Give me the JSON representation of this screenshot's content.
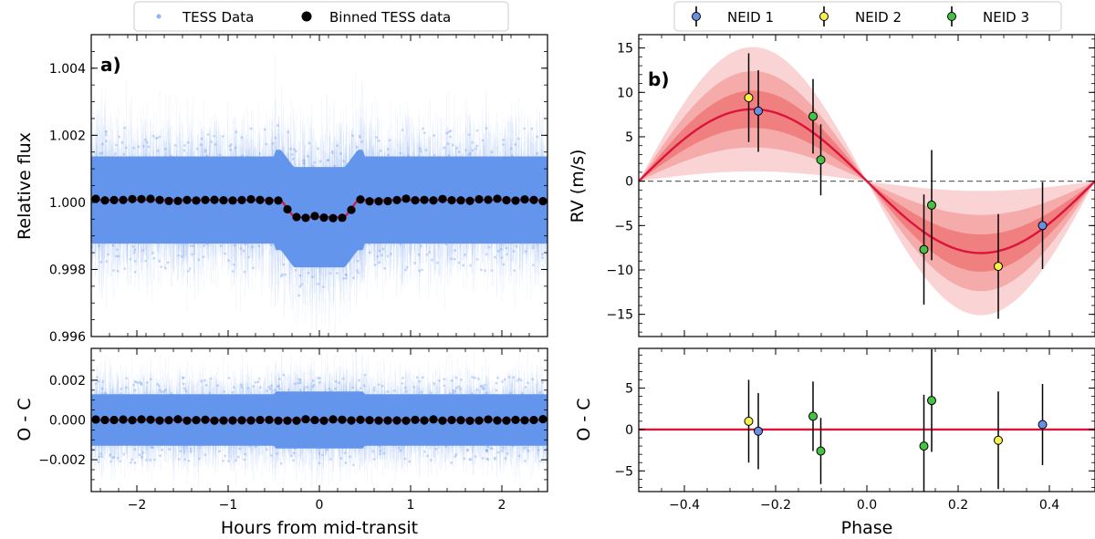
{
  "chart_data": [
    {
      "id": "transit",
      "type": "scatter",
      "panel_label": "a)",
      "legend": [
        "TESS Data",
        "Binned TESS data"
      ],
      "xlabel": "Hours from mid-transit",
      "ylabel": "Relative flux",
      "xlim": [
        -2.5,
        2.5
      ],
      "ylim": [
        0.996,
        1.005
      ],
      "xticks": [
        -2,
        -1,
        0,
        1,
        2
      ],
      "xtick_labels": [
        "−2",
        "−1",
        "0",
        "1",
        "2"
      ],
      "yticks": [
        0.996,
        0.998,
        1.0,
        1.002,
        1.004
      ],
      "ytick_labels": [
        "0.996",
        "0.998",
        "1.000",
        "1.002",
        "1.004"
      ],
      "raw_scatter": {
        "baseline": 1.00007,
        "core_halfwidth": 0.0013,
        "halo_halfwidth": 0.0019,
        "count": 4200
      },
      "model": {
        "baseline": 1.00007,
        "depth": 0.00051,
        "t1": 0.42,
        "t2": 0.28
      },
      "binned": {
        "x_start": -2.45,
        "step": 0.1,
        "count": 50
      },
      "colors": {
        "raw": "#6495ED",
        "binned": "#000000",
        "model": "#DC143C"
      }
    },
    {
      "id": "transit_residuals",
      "type": "scatter",
      "ylabel": "O - C",
      "xlim": [
        -2.5,
        2.5
      ],
      "ylim": [
        -0.0036,
        0.0036
      ],
      "yticks": [
        -0.002,
        0.0,
        0.002
      ],
      "ytick_labels": [
        "−0.002",
        "0.000",
        "0.002"
      ],
      "raw_scatter": {
        "baseline": 0.0,
        "core_halfwidth": 0.0013,
        "halo_halfwidth": 0.0019,
        "count": 4200
      },
      "binned": {
        "x_start": -2.45,
        "step": 0.1,
        "count": 50
      }
    },
    {
      "id": "rv",
      "type": "scatter",
      "panel_label": "b)",
      "legend": [
        "NEID 1",
        "NEID 2",
        "NEID 3"
      ],
      "ylabel": "RV (m/s)",
      "xlim": [
        -0.5,
        0.5
      ],
      "ylim": [
        -17.5,
        16.5
      ],
      "yticks": [
        -15,
        -10,
        -5,
        0,
        5,
        10,
        15
      ],
      "ytick_labels": [
        "−15",
        "−10",
        "−5",
        "0",
        "5",
        "10",
        "15"
      ],
      "model": {
        "K": 8.1,
        "bands_amplitude": [
          10.2,
          12.4,
          15.1
        ]
      },
      "series": [
        {
          "name": "NEID 1",
          "color": "#6B8FE0",
          "points": [
            {
              "x": -0.238,
              "y": 7.9,
              "err": 4.6
            },
            {
              "x": 0.385,
              "y": -5.0,
              "err": 4.9
            }
          ]
        },
        {
          "name": "NEID 2",
          "color": "#F5F04A",
          "points": [
            {
              "x": -0.259,
              "y": 9.4,
              "err": 5.0
            },
            {
              "x": 0.288,
              "y": -9.6,
              "err": 5.9
            }
          ]
        },
        {
          "name": "NEID 3",
          "color": "#44C244",
          "points": [
            {
              "x": -0.118,
              "y": 7.3,
              "err": 4.2
            },
            {
              "x": -0.101,
              "y": 2.4,
              "err": 4.0
            },
            {
              "x": 0.125,
              "y": -7.7,
              "err": 6.2
            },
            {
              "x": 0.142,
              "y": -2.7,
              "err": 6.2
            }
          ]
        }
      ],
      "colors": {
        "model": "#DC143C",
        "band_inner": "#F08080",
        "band_mid": "#F6ABAB",
        "band_outer": "#FAD4D4"
      }
    },
    {
      "id": "rv_residuals",
      "type": "scatter",
      "ylabel": "O - C",
      "xlabel": "Phase",
      "xlim": [
        -0.5,
        0.5
      ],
      "ylim": [
        -7.5,
        9.8
      ],
      "xticks": [
        -0.4,
        -0.2,
        0.0,
        0.2,
        0.4
      ],
      "xtick_labels": [
        "−0.4",
        "−0.2",
        "0.0",
        "0.2",
        "0.4"
      ],
      "yticks": [
        -5,
        0,
        5
      ],
      "ytick_labels": [
        "−5",
        "0",
        "5"
      ],
      "series": [
        {
          "name": "NEID 1",
          "color": "#6B8FE0",
          "points": [
            {
              "x": -0.238,
              "y": -0.2,
              "err": 4.6
            },
            {
              "x": 0.385,
              "y": 0.6,
              "err": 4.9
            }
          ]
        },
        {
          "name": "NEID 2",
          "color": "#F5F04A",
          "points": [
            {
              "x": -0.259,
              "y": 1.0,
              "err": 5.0
            },
            {
              "x": 0.288,
              "y": -1.3,
              "err": 5.9
            }
          ]
        },
        {
          "name": "NEID 3",
          "color": "#44C244",
          "points": [
            {
              "x": -0.118,
              "y": 1.6,
              "err": 4.2
            },
            {
              "x": -0.101,
              "y": -2.6,
              "err": 4.0
            },
            {
              "x": 0.125,
              "y": -2.0,
              "err": 6.2
            },
            {
              "x": 0.142,
              "y": 3.5,
              "err": 6.2
            }
          ]
        }
      ]
    }
  ]
}
